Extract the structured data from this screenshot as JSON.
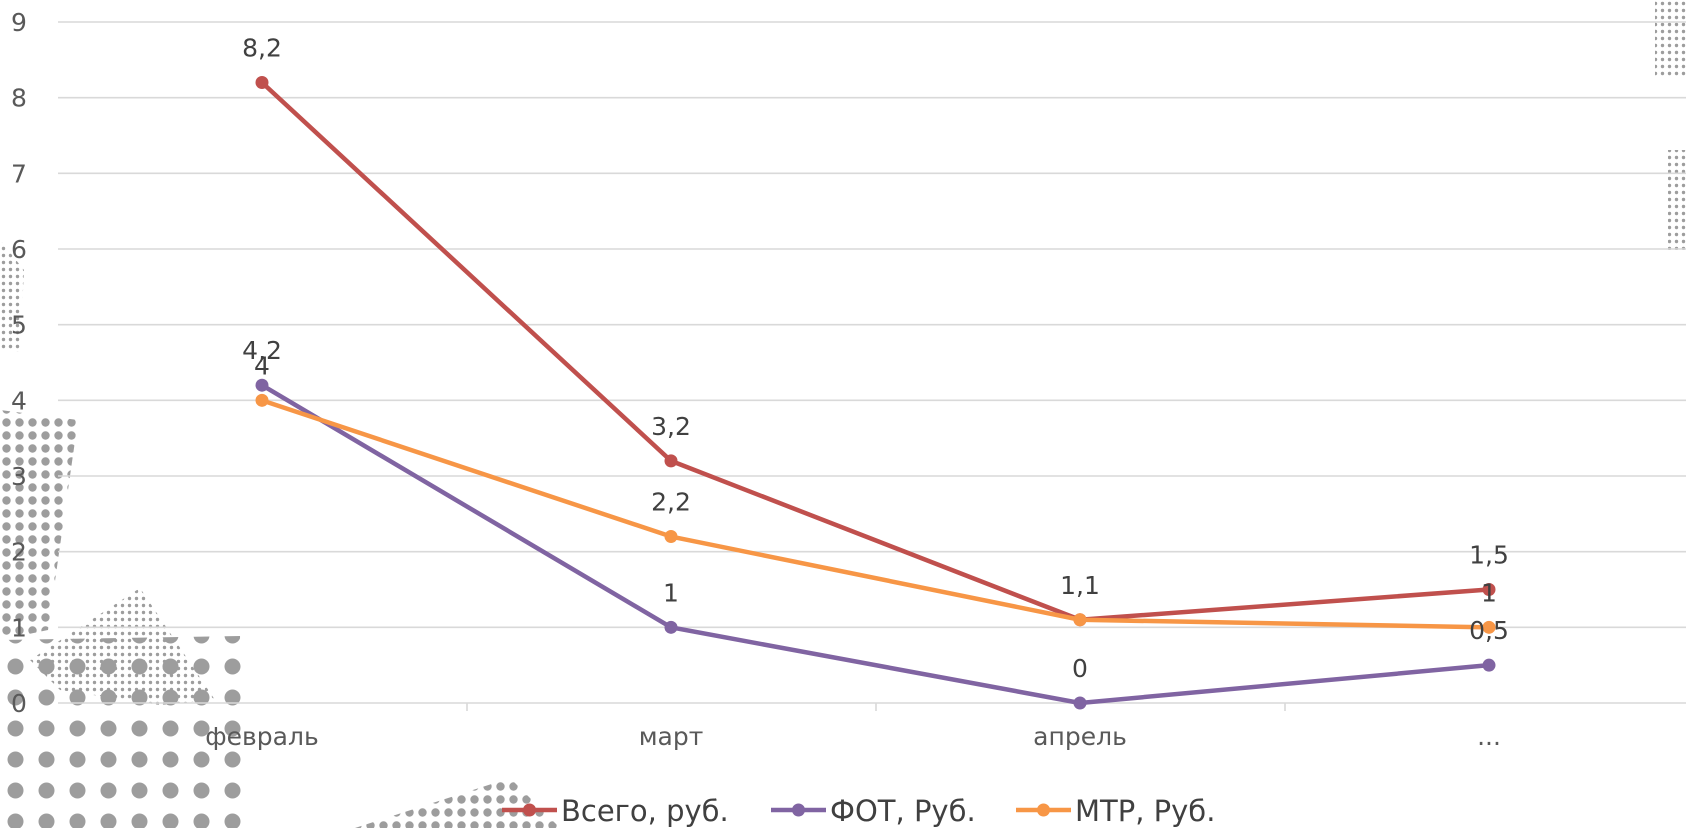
{
  "chart_data": {
    "type": "line",
    "categories": [
      "февраль",
      "март",
      "апрель",
      "..."
    ],
    "series": [
      {
        "name": "Всего, руб.",
        "color": "#c0504d",
        "values": [
          8.2,
          3.2,
          1.1,
          1.5
        ],
        "labels": [
          "8,2",
          "3,2",
          "1,1",
          "1,5"
        ]
      },
      {
        "name": "ФОТ, Руб.",
        "color": "#8064a2",
        "values": [
          4.2,
          1,
          0,
          0.5
        ],
        "labels": [
          "4,2",
          "1",
          "0",
          "0,5"
        ]
      },
      {
        "name": "МТР, Руб.",
        "color": "#f79646",
        "values": [
          4,
          2.2,
          1.1,
          1
        ],
        "labels": [
          "4",
          "2,2",
          "",
          "1"
        ]
      }
    ],
    "ylim": [
      0,
      9
    ],
    "yticks": [
      "0",
      "1",
      "2",
      "3",
      "4",
      "5",
      "6",
      "7",
      "8",
      "9"
    ],
    "grid": true,
    "legend": "bottom"
  }
}
